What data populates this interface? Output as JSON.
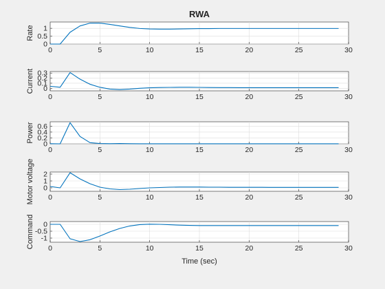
{
  "figure": {
    "title": "RWA",
    "background": "#f0f0f0",
    "line_color": "#0072bd"
  },
  "chart_data": [
    {
      "type": "line",
      "title": "RWA",
      "ylabel": "Rate",
      "xlabel": "",
      "xlim": [
        0,
        30
      ],
      "ylim": [
        0,
        1.4
      ],
      "xticks": [
        0,
        5,
        10,
        15,
        20,
        25,
        30
      ],
      "yticks": [
        0,
        0.5,
        1
      ],
      "ytick_labels": [
        "0",
        "0.5",
        "1"
      ],
      "grid": true,
      "x": [
        0,
        1,
        2,
        3,
        4,
        5,
        6,
        7,
        8,
        9,
        10,
        11,
        12,
        13,
        14,
        15,
        16,
        17,
        18,
        19,
        20,
        21,
        22,
        23,
        24,
        25,
        26,
        27,
        28,
        29
      ],
      "series": [
        {
          "values": [
            0,
            0,
            0.75,
            1.15,
            1.33,
            1.33,
            1.25,
            1.15,
            1.06,
            0.99,
            0.96,
            0.95,
            0.95,
            0.96,
            0.97,
            0.98,
            0.98,
            0.99,
            0.99,
            0.99,
            0.99,
            0.99,
            0.99,
            0.99,
            0.99,
            0.99,
            0.99,
            0.99,
            0.99,
            0.99
          ]
        }
      ]
    },
    {
      "type": "line",
      "ylabel": "Current",
      "xlabel": "",
      "xlim": [
        0,
        30
      ],
      "ylim": [
        -0.05,
        0.33
      ],
      "xticks": [
        0,
        5,
        10,
        15,
        20,
        25,
        30
      ],
      "yticks": [
        0,
        0.1,
        0.2,
        0.3
      ],
      "ytick_labels": [
        "0",
        "0.1",
        "0.2",
        "0.3"
      ],
      "grid": true,
      "x": [
        0,
        1,
        2,
        3,
        4,
        5,
        6,
        7,
        8,
        9,
        10,
        11,
        12,
        13,
        14,
        15,
        16,
        17,
        18,
        19,
        20,
        21,
        22,
        23,
        24,
        25,
        26,
        27,
        28,
        29
      ],
      "series": [
        {
          "values": [
            0.04,
            0.02,
            0.31,
            0.18,
            0.08,
            0.02,
            -0.015,
            -0.025,
            -0.015,
            0,
            0.01,
            0.015,
            0.018,
            0.02,
            0.02,
            0.018,
            0.015,
            0.014,
            0.013,
            0.012,
            0.012,
            0.012,
            0.012,
            0.012,
            0.012,
            0.012,
            0.012,
            0.012,
            0.012,
            0.012
          ]
        }
      ]
    },
    {
      "type": "line",
      "ylabel": "Power",
      "xlabel": "",
      "xlim": [
        0,
        30
      ],
      "ylim": [
        0,
        0.75
      ],
      "xticks": [
        0,
        5,
        10,
        15,
        20,
        25,
        30
      ],
      "yticks": [
        0,
        0.2,
        0.4,
        0.6
      ],
      "ytick_labels": [
        "0",
        "0.2",
        "0.4",
        "0.6"
      ],
      "grid": true,
      "x": [
        0,
        1,
        2,
        3,
        4,
        5,
        6,
        7,
        8,
        9,
        10,
        11,
        12,
        13,
        14,
        15,
        16,
        17,
        18,
        19,
        20,
        21,
        22,
        23,
        24,
        25,
        26,
        27,
        28,
        29
      ],
      "series": [
        {
          "values": [
            0.005,
            0,
            0.72,
            0.25,
            0.04,
            0.01,
            0.005,
            0.01,
            0.005,
            0.002,
            0.001,
            0.001,
            0.001,
            0.001,
            0.001,
            0.001,
            0.001,
            0.001,
            0.001,
            0.001,
            0.001,
            0.001,
            0.001,
            0.001,
            0.001,
            0.001,
            0.001,
            0.001,
            0.001,
            0.001
          ]
        }
      ]
    },
    {
      "type": "line",
      "ylabel": "Motor voltage",
      "xlabel": "",
      "xlim": [
        0,
        30
      ],
      "ylim": [
        -0.5,
        2.3
      ],
      "xticks": [
        0,
        5,
        10,
        15,
        20,
        25,
        30
      ],
      "yticks": [
        0,
        1,
        2
      ],
      "ytick_labels": [
        "0",
        "1",
        "2"
      ],
      "grid": true,
      "x": [
        0,
        1,
        2,
        3,
        4,
        5,
        6,
        7,
        8,
        9,
        10,
        11,
        12,
        13,
        14,
        15,
        16,
        17,
        18,
        19,
        20,
        21,
        22,
        23,
        24,
        25,
        26,
        27,
        28,
        29
      ],
      "series": [
        {
          "values": [
            0.2,
            0,
            2.2,
            1.3,
            0.6,
            0.1,
            -0.15,
            -0.25,
            -0.2,
            -0.1,
            0,
            0.05,
            0.1,
            0.12,
            0.12,
            0.12,
            0.1,
            0.1,
            0.08,
            0.08,
            0.08,
            0.08,
            0.07,
            0.07,
            0.07,
            0.07,
            0.07,
            0.07,
            0.07,
            0.07
          ]
        }
      ]
    },
    {
      "type": "line",
      "ylabel": "Command",
      "xlabel": "Time (sec)",
      "xlim": [
        0,
        30
      ],
      "ylim": [
        -1.3,
        0.2
      ],
      "xticks": [
        0,
        5,
        10,
        15,
        20,
        25,
        30
      ],
      "yticks": [
        -1,
        -0.5,
        0
      ],
      "ytick_labels": [
        "-1",
        "-0.5",
        "0"
      ],
      "grid": true,
      "x": [
        0,
        1,
        2,
        3,
        4,
        5,
        6,
        7,
        8,
        9,
        10,
        11,
        12,
        13,
        14,
        15,
        16,
        17,
        18,
        19,
        20,
        21,
        22,
        23,
        24,
        25,
        26,
        27,
        28,
        29
      ],
      "series": [
        {
          "values": [
            0,
            0,
            -1.05,
            -1.25,
            -1.12,
            -0.85,
            -0.55,
            -0.3,
            -0.12,
            -0.02,
            0.01,
            0,
            -0.03,
            -0.06,
            -0.08,
            -0.09,
            -0.09,
            -0.09,
            -0.09,
            -0.09,
            -0.09,
            -0.09,
            -0.09,
            -0.09,
            -0.09,
            -0.09,
            -0.09,
            -0.09,
            -0.09,
            -0.09
          ]
        }
      ]
    }
  ]
}
